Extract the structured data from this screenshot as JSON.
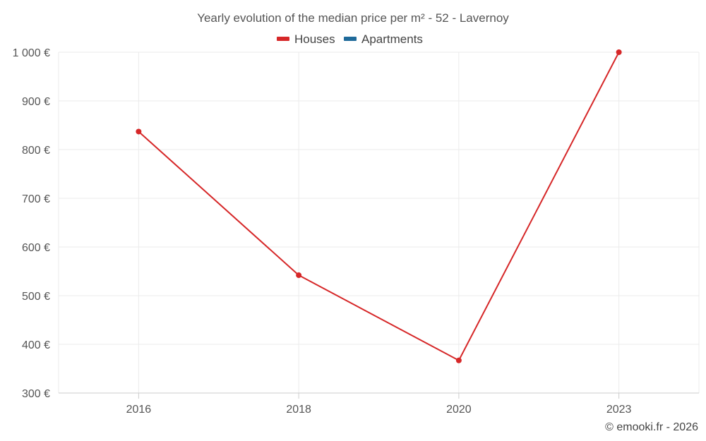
{
  "chart_data": {
    "type": "line",
    "title": "Yearly evolution of the median price per m² - 52 - Lavernoy",
    "categories": [
      "2016",
      "2018",
      "2020",
      "2023"
    ],
    "series": [
      {
        "name": "Houses",
        "color": "#d62728",
        "values": [
          837,
          542,
          367,
          1000
        ]
      },
      {
        "name": "Apartments",
        "color": "#1f6a9a",
        "values": [
          null,
          null,
          null,
          null
        ]
      }
    ],
    "ylim": [
      300,
      1000
    ],
    "yticks": [
      300,
      400,
      500,
      600,
      700,
      800,
      900,
      1000
    ],
    "ytick_labels": [
      "300 €",
      "400 €",
      "500 €",
      "600 €",
      "700 €",
      "800 €",
      "900 €",
      "1 000 €"
    ],
    "xlabel": "",
    "ylabel": "",
    "grid": true,
    "legend_position": "top-center"
  },
  "credit": "© emooki.fr - 2026"
}
